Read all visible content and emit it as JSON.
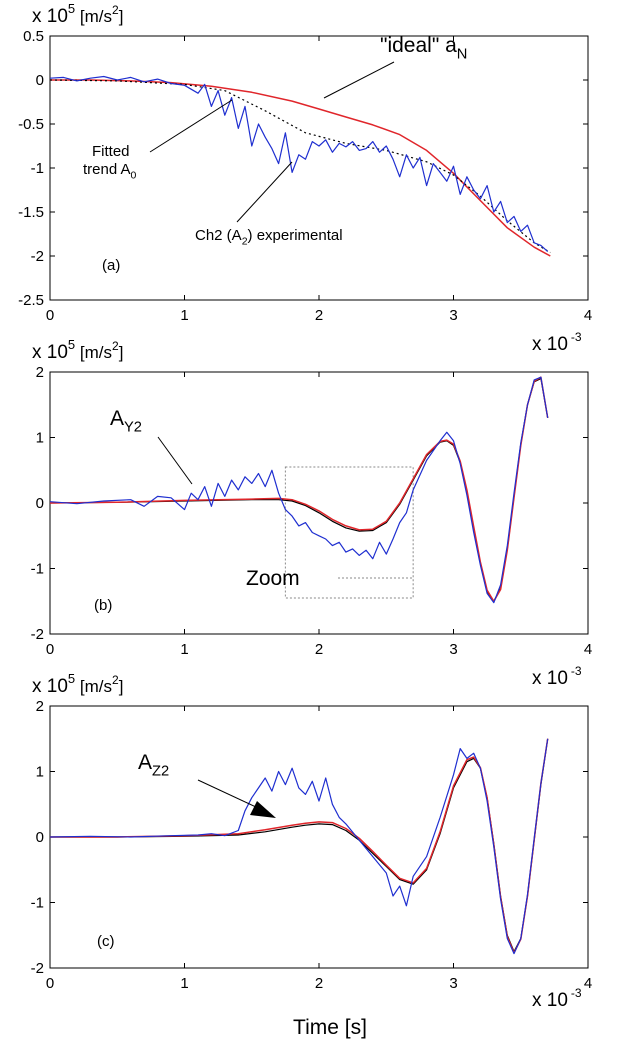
{
  "shared": {
    "xlabel": "Time [s]",
    "x_exponent_label": "x 10",
    "x_exponent": "-3"
  },
  "colors": {
    "ideal": "#e0262b",
    "experimental": "#1f2fd0",
    "fitted": "#000000",
    "axis": "#000000",
    "zoom_box": "#8a8a8a"
  },
  "chart_data": [
    {
      "type": "line",
      "panel_label": "(a)",
      "y_unit_label": "x 10",
      "y_unit_exponent": "5",
      "y_unit_suffix": "[m/s",
      "y_unit_suffix_exp": "2",
      "y_unit_close": "]",
      "xlim": [
        0,
        4
      ],
      "ylim": [
        -2.5,
        0.5
      ],
      "xticks": [
        0,
        1,
        2,
        3,
        4
      ],
      "yticks": [
        -2.5,
        -2,
        -1.5,
        -1,
        -0.5,
        0,
        0.5
      ],
      "xtick_labels": [
        "0",
        "1",
        "2",
        "3",
        "4"
      ],
      "ytick_labels": [
        "-2.5",
        "-2",
        "-1.5",
        "-1",
        "-0.5",
        "0",
        "0.5"
      ],
      "annotations": {
        "ideal": {
          "text": "\"ideal\" a",
          "sub": "N"
        },
        "fitted_line1": "Fitted",
        "fitted_line2": {
          "text": "trend A",
          "sub": "0"
        },
        "experimental": {
          "pre": "Ch2 (A",
          "sub": "2",
          "post": ") experimental"
        }
      },
      "series": [
        {
          "name": "\"ideal\" aN",
          "style": "ideal",
          "x": [
            0,
            0.3,
            0.6,
            0.9,
            1.2,
            1.5,
            1.8,
            2.0,
            2.2,
            2.4,
            2.6,
            2.8,
            3.0,
            3.2,
            3.4,
            3.6,
            3.72
          ],
          "y": [
            0,
            0,
            -0.01,
            -0.03,
            -0.07,
            -0.14,
            -0.24,
            -0.33,
            -0.42,
            -0.51,
            -0.62,
            -0.8,
            -1.06,
            -1.37,
            -1.68,
            -1.9,
            -2.0
          ]
        },
        {
          "name": "Fitted trend A0",
          "style": "fitted",
          "x": [
            0,
            0.5,
            1.0,
            1.3,
            1.6,
            1.9,
            2.2,
            2.5,
            2.8,
            3.0,
            3.2,
            3.4,
            3.6,
            3.72
          ],
          "y": [
            0,
            -0.01,
            -0.05,
            -0.12,
            -0.35,
            -0.6,
            -0.72,
            -0.8,
            -0.93,
            -1.08,
            -1.32,
            -1.6,
            -1.85,
            -1.96
          ]
        },
        {
          "name": "Ch2 (A2) experimental",
          "style": "experimental",
          "x": [
            0,
            0.1,
            0.2,
            0.3,
            0.4,
            0.5,
            0.6,
            0.7,
            0.8,
            0.9,
            1.0,
            1.1,
            1.15,
            1.2,
            1.25,
            1.3,
            1.35,
            1.4,
            1.45,
            1.5,
            1.55,
            1.6,
            1.65,
            1.7,
            1.75,
            1.8,
            1.85,
            1.9,
            1.95,
            2.0,
            2.05,
            2.1,
            2.15,
            2.2,
            2.25,
            2.3,
            2.35,
            2.4,
            2.45,
            2.5,
            2.55,
            2.6,
            2.65,
            2.7,
            2.75,
            2.8,
            2.85,
            2.9,
            2.95,
            3.0,
            3.05,
            3.1,
            3.15,
            3.2,
            3.25,
            3.3,
            3.35,
            3.4,
            3.45,
            3.5,
            3.55,
            3.6,
            3.65,
            3.7
          ],
          "y": [
            0.02,
            0.03,
            -0.01,
            0.02,
            0.04,
            0.0,
            0.03,
            -0.02,
            0.01,
            -0.04,
            -0.06,
            -0.15,
            -0.05,
            -0.3,
            -0.12,
            -0.4,
            -0.2,
            -0.55,
            -0.3,
            -0.75,
            -0.5,
            -0.65,
            -0.78,
            -0.95,
            -0.6,
            -1.05,
            -0.85,
            -0.9,
            -0.7,
            -0.75,
            -0.68,
            -0.82,
            -0.72,
            -0.76,
            -0.7,
            -0.8,
            -0.78,
            -0.7,
            -0.82,
            -0.75,
            -0.9,
            -1.1,
            -0.85,
            -1.0,
            -0.88,
            -1.2,
            -0.95,
            -1.05,
            -1.15,
            -0.98,
            -1.3,
            -1.1,
            -1.25,
            -1.35,
            -1.2,
            -1.5,
            -1.38,
            -1.62,
            -1.55,
            -1.72,
            -1.65,
            -1.85,
            -1.88,
            -1.95
          ]
        }
      ]
    },
    {
      "type": "line",
      "panel_label": "(b)",
      "y_unit_label": "x 10",
      "y_unit_exponent": "5",
      "y_unit_suffix": "[m/s",
      "y_unit_suffix_exp": "2",
      "y_unit_close": "]",
      "xlim": [
        0,
        4
      ],
      "ylim": [
        -2,
        2
      ],
      "xticks": [
        0,
        1,
        2,
        3,
        4
      ],
      "yticks": [
        -2,
        -1,
        0,
        1,
        2
      ],
      "xtick_labels": [
        "0",
        "1",
        "2",
        "3",
        "4"
      ],
      "ytick_labels": [
        "-2",
        "-1",
        "0",
        "1",
        "2"
      ],
      "annotations": {
        "series_label": {
          "text": "A",
          "sub": "Y2"
        },
        "zoom": "Zoom"
      },
      "zoom_box": {
        "x": [
          1.75,
          2.7
        ],
        "y": [
          -1.45,
          0.55
        ]
      },
      "series": [
        {
          "name": "fitted",
          "style": "fitted",
          "x": [
            0,
            0.5,
            1.0,
            1.5,
            1.7,
            1.8,
            1.9,
            2.0,
            2.1,
            2.2,
            2.3,
            2.4,
            2.5,
            2.6,
            2.7,
            2.8,
            2.9,
            2.95,
            3.0,
            3.05,
            3.1,
            3.15,
            3.2,
            3.25,
            3.3,
            3.35,
            3.4,
            3.45,
            3.5,
            3.55,
            3.6,
            3.65,
            3.7
          ],
          "y": [
            0,
            0.01,
            0.03,
            0.05,
            0.05,
            0.03,
            -0.04,
            -0.15,
            -0.28,
            -0.38,
            -0.43,
            -0.42,
            -0.3,
            -0.02,
            0.35,
            0.72,
            0.93,
            0.95,
            0.88,
            0.62,
            0.18,
            -0.38,
            -0.92,
            -1.35,
            -1.5,
            -1.3,
            -0.7,
            0.1,
            0.9,
            1.5,
            1.85,
            1.9,
            1.3
          ]
        },
        {
          "name": "ideal",
          "style": "ideal",
          "x": [
            0,
            0.5,
            1.0,
            1.5,
            1.7,
            1.8,
            1.9,
            2.0,
            2.1,
            2.2,
            2.3,
            2.4,
            2.5,
            2.6,
            2.7,
            2.8,
            2.9,
            2.95,
            3.0,
            3.05,
            3.1,
            3.15,
            3.2,
            3.25,
            3.3,
            3.35,
            3.4,
            3.45,
            3.5,
            3.55,
            3.6,
            3.65,
            3.7
          ],
          "y": [
            0,
            0.01,
            0.04,
            0.06,
            0.07,
            0.05,
            -0.02,
            -0.12,
            -0.25,
            -0.35,
            -0.41,
            -0.4,
            -0.28,
            0.0,
            0.37,
            0.74,
            0.94,
            0.96,
            0.9,
            0.64,
            0.2,
            -0.36,
            -0.9,
            -1.33,
            -1.5,
            -1.32,
            -0.72,
            0.08,
            0.88,
            1.5,
            1.86,
            1.92,
            1.3
          ]
        },
        {
          "name": "AY2",
          "style": "experimental",
          "x": [
            0,
            0.2,
            0.4,
            0.6,
            0.7,
            0.8,
            0.9,
            1.0,
            1.05,
            1.1,
            1.15,
            1.2,
            1.25,
            1.3,
            1.35,
            1.4,
            1.45,
            1.5,
            1.55,
            1.6,
            1.65,
            1.7,
            1.75,
            1.8,
            1.85,
            1.9,
            1.95,
            2.0,
            2.05,
            2.1,
            2.15,
            2.2,
            2.25,
            2.3,
            2.35,
            2.4,
            2.45,
            2.5,
            2.55,
            2.6,
            2.65,
            2.7,
            2.8,
            2.9,
            2.95,
            3.0,
            3.05,
            3.1,
            3.15,
            3.2,
            3.25,
            3.3,
            3.35,
            3.4,
            3.45,
            3.5,
            3.55,
            3.6,
            3.65,
            3.7
          ],
          "y": [
            0.02,
            -0.01,
            0.03,
            0.05,
            -0.05,
            0.1,
            0.08,
            -0.1,
            0.15,
            0.05,
            0.25,
            -0.05,
            0.3,
            0.1,
            0.35,
            0.2,
            0.4,
            0.3,
            0.45,
            0.25,
            0.5,
            0.15,
            -0.1,
            -0.2,
            -0.35,
            -0.3,
            -0.45,
            -0.5,
            -0.55,
            -0.65,
            -0.6,
            -0.75,
            -0.7,
            -0.8,
            -0.72,
            -0.85,
            -0.6,
            -0.78,
            -0.55,
            -0.3,
            -0.15,
            0.2,
            0.65,
            0.95,
            1.08,
            0.95,
            0.6,
            0.12,
            -0.45,
            -0.95,
            -1.38,
            -1.52,
            -1.25,
            -0.65,
            0.15,
            0.92,
            1.5,
            1.88,
            1.92,
            1.3
          ]
        }
      ]
    },
    {
      "type": "line",
      "panel_label": "(c)",
      "y_unit_label": "x 10",
      "y_unit_exponent": "5",
      "y_unit_suffix": "[m/s",
      "y_unit_suffix_exp": "2",
      "y_unit_close": "]",
      "xlim": [
        0,
        4
      ],
      "ylim": [
        -2,
        2
      ],
      "xticks": [
        0,
        1,
        2,
        3,
        4
      ],
      "yticks": [
        -2,
        -1,
        0,
        1,
        2
      ],
      "xtick_labels": [
        "0",
        "1",
        "2",
        "3",
        "4"
      ],
      "ytick_labels": [
        "-2",
        "-1",
        "0",
        "1",
        "2"
      ],
      "annotations": {
        "series_label": {
          "text": "A",
          "sub": "Z2"
        }
      },
      "series": [
        {
          "name": "fitted",
          "style": "fitted",
          "x": [
            0,
            0.5,
            1.0,
            1.4,
            1.6,
            1.8,
            1.9,
            2.0,
            2.1,
            2.2,
            2.3,
            2.4,
            2.5,
            2.6,
            2.7,
            2.8,
            2.9,
            3.0,
            3.1,
            3.15,
            3.2,
            3.25,
            3.3,
            3.35,
            3.4,
            3.45,
            3.5,
            3.55,
            3.6,
            3.65,
            3.7
          ],
          "y": [
            0,
            0,
            0.01,
            0.03,
            0.08,
            0.15,
            0.18,
            0.2,
            0.19,
            0.1,
            -0.05,
            -0.25,
            -0.45,
            -0.65,
            -0.72,
            -0.5,
            0.05,
            0.75,
            1.15,
            1.2,
            1.05,
            0.6,
            -0.1,
            -0.9,
            -1.5,
            -1.75,
            -1.55,
            -0.9,
            -0.05,
            0.8,
            1.5
          ]
        },
        {
          "name": "ideal",
          "style": "ideal",
          "x": [
            0,
            0.5,
            1.0,
            1.4,
            1.6,
            1.8,
            1.9,
            2.0,
            2.1,
            2.2,
            2.3,
            2.4,
            2.5,
            2.6,
            2.7,
            2.8,
            2.9,
            3.0,
            3.1,
            3.15,
            3.2,
            3.25,
            3.3,
            3.35,
            3.4,
            3.45,
            3.5,
            3.55,
            3.6,
            3.65,
            3.7
          ],
          "y": [
            0,
            0,
            0.02,
            0.05,
            0.11,
            0.18,
            0.21,
            0.23,
            0.22,
            0.13,
            -0.02,
            -0.22,
            -0.43,
            -0.63,
            -0.7,
            -0.48,
            0.08,
            0.78,
            1.18,
            1.22,
            1.06,
            0.6,
            -0.12,
            -0.92,
            -1.52,
            -1.77,
            -1.56,
            -0.9,
            -0.04,
            0.82,
            1.5
          ]
        },
        {
          "name": "AZ2",
          "style": "experimental",
          "x": [
            0,
            0.3,
            0.6,
            0.9,
            1.1,
            1.2,
            1.3,
            1.4,
            1.45,
            1.5,
            1.55,
            1.6,
            1.65,
            1.7,
            1.75,
            1.8,
            1.85,
            1.9,
            1.95,
            2.0,
            2.05,
            2.1,
            2.15,
            2.2,
            2.3,
            2.4,
            2.5,
            2.55,
            2.6,
            2.65,
            2.7,
            2.8,
            2.9,
            3.0,
            3.05,
            3.1,
            3.15,
            3.2,
            3.25,
            3.3,
            3.35,
            3.4,
            3.45,
            3.5,
            3.55,
            3.6,
            3.65,
            3.7
          ],
          "y": [
            0,
            0.01,
            0,
            0.02,
            0.03,
            0.05,
            0.02,
            0.1,
            0.4,
            0.6,
            0.75,
            0.9,
            0.7,
            1.0,
            0.8,
            1.05,
            0.75,
            0.65,
            0.85,
            0.55,
            0.9,
            0.5,
            0.3,
            0.2,
            -0.05,
            -0.3,
            -0.55,
            -0.9,
            -0.75,
            -1.05,
            -0.6,
            -0.3,
            0.3,
            0.95,
            1.35,
            1.2,
            1.28,
            1.05,
            0.55,
            -0.15,
            -0.95,
            -1.55,
            -1.78,
            -1.55,
            -0.88,
            -0.02,
            0.82,
            1.5
          ]
        }
      ]
    }
  ]
}
